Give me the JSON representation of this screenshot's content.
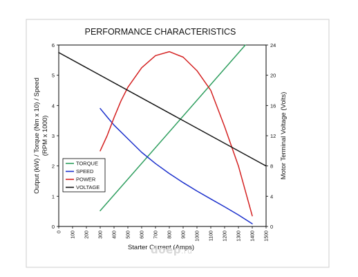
{
  "chart_data": {
    "type": "line",
    "title": "PERFORMANCE CHARACTERISTICS",
    "xlabel": "Starter Current (Amps)",
    "ylabel_left_lines": [
      "Output (kW) / Torque (Nm x 10) / Speed",
      "(RPM x 1000)"
    ],
    "ylabel_right": "Motor Terminal Voltage (Volts)",
    "xlim": [
      0,
      1500
    ],
    "x_ticks": [
      0,
      100,
      200,
      300,
      400,
      500,
      600,
      700,
      800,
      900,
      1000,
      1100,
      1200,
      1300,
      1400,
      1500
    ],
    "ylim_left": [
      0,
      6
    ],
    "y_ticks_left": [
      0,
      1,
      2,
      3,
      4,
      5,
      6
    ],
    "ylim_right": [
      0,
      24
    ],
    "y_ticks_right": [
      0,
      4,
      8,
      12,
      16,
      20,
      24
    ],
    "grid": false,
    "legend_position": "lower-left",
    "series": [
      {
        "name": "TORQUE",
        "color": "#2e9e5e",
        "axis": "left",
        "x": [
          300,
          1350
        ],
        "y": [
          0.52,
          6.0
        ]
      },
      {
        "name": "SPEED",
        "color": "#1a2fcc",
        "axis": "left",
        "x": [
          300,
          350,
          400,
          500,
          600,
          700,
          800,
          900,
          1000,
          1100,
          1200,
          1300,
          1400
        ],
        "y": [
          3.9,
          3.62,
          3.35,
          2.9,
          2.45,
          2.08,
          1.75,
          1.45,
          1.17,
          0.91,
          0.65,
          0.38,
          0.09
        ]
      },
      {
        "name": "POWER",
        "color": "#d42020",
        "axis": "left",
        "x": [
          300,
          350,
          400,
          450,
          500,
          600,
          700,
          800,
          900,
          1000,
          1100,
          1200,
          1300,
          1400
        ],
        "y": [
          2.5,
          3.0,
          3.6,
          4.15,
          4.6,
          5.25,
          5.65,
          5.78,
          5.6,
          5.15,
          4.5,
          3.3,
          2.0,
          0.35
        ]
      },
      {
        "name": "VOLTAGE",
        "color": "#111111",
        "axis": "right",
        "x": [
          0,
          1500
        ],
        "y": [
          23.0,
          8.0
        ]
      }
    ]
  },
  "watermark": {
    "main": "doep",
    "suffix": ".ru"
  }
}
